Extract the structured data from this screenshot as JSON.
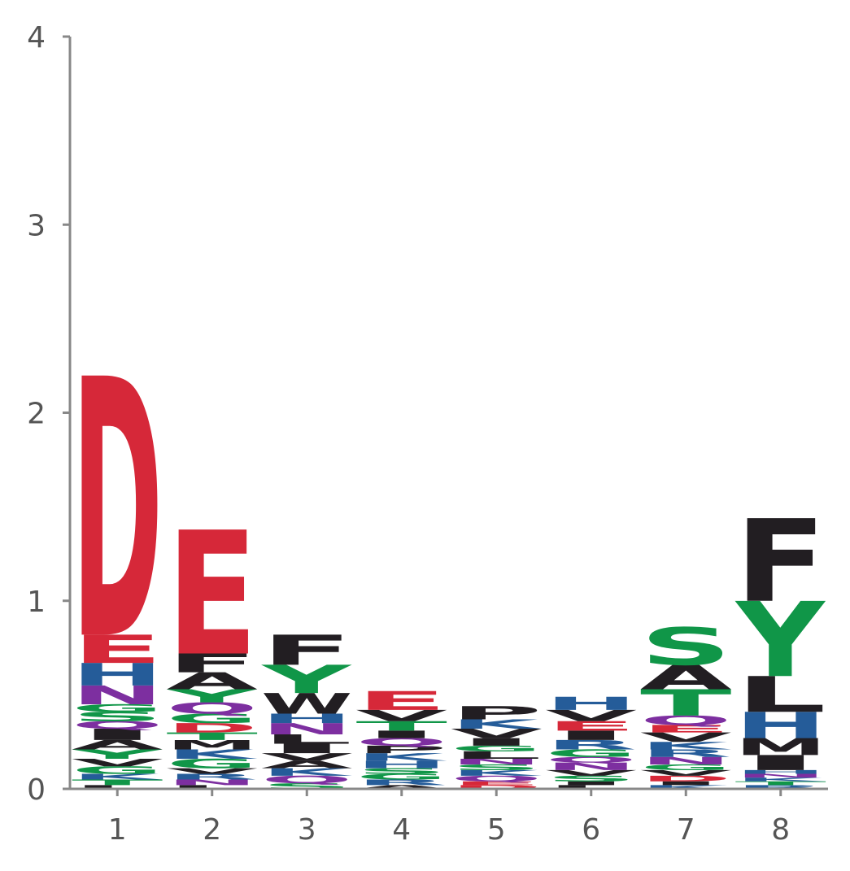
{
  "chart_data": {
    "type": "sequence_logo",
    "ylim": [
      0,
      4
    ],
    "y_ticks": [
      "0",
      "1",
      "2",
      "3",
      "4"
    ],
    "x_ticks": [
      "1",
      "2",
      "3",
      "4",
      "5",
      "6",
      "7",
      "8"
    ],
    "colors": {
      "acidic": "#d62839",
      "polar": "#109648",
      "basic": "#255c99",
      "neutral": "#7d2fa0",
      "hydrophobic": "#221e22"
    },
    "residue_class": {
      "D": "acidic",
      "E": "acidic",
      "S": "polar",
      "T": "polar",
      "G": "polar",
      "Y": "polar",
      "C": "polar",
      "H": "basic",
      "K": "basic",
      "R": "basic",
      "N": "neutral",
      "Q": "neutral",
      "A": "hydrophobic",
      "F": "hydrophobic",
      "W": "hydrophobic",
      "L": "hydrophobic",
      "V": "hydrophobic",
      "I": "hydrophobic",
      "M": "hydrophobic",
      "P": "hydrophobic"
    },
    "positions": [
      {
        "position": "1",
        "stack": [
          {
            "letter": "L",
            "bits": 0.02
          },
          {
            "letter": "T",
            "bits": 0.03
          },
          {
            "letter": "K",
            "bits": 0.03
          },
          {
            "letter": "G",
            "bits": 0.04
          },
          {
            "letter": "V",
            "bits": 0.04
          },
          {
            "letter": "Y",
            "bits": 0.05
          },
          {
            "letter": "A",
            "bits": 0.05
          },
          {
            "letter": "I",
            "bits": 0.06
          },
          {
            "letter": "Q",
            "bits": 0.04
          },
          {
            "letter": "S",
            "bits": 0.05
          },
          {
            "letter": "G",
            "bits": 0.04
          },
          {
            "letter": "N",
            "bits": 0.1
          },
          {
            "letter": "H",
            "bits": 0.12
          },
          {
            "letter": "E",
            "bits": 0.15
          },
          {
            "letter": "D",
            "bits": 1.38
          }
        ]
      },
      {
        "position": "2",
        "stack": [
          {
            "letter": "L",
            "bits": 0.02
          },
          {
            "letter": "N",
            "bits": 0.03
          },
          {
            "letter": "R",
            "bits": 0.03
          },
          {
            "letter": "V",
            "bits": 0.03
          },
          {
            "letter": "G",
            "bits": 0.05
          },
          {
            "letter": "K",
            "bits": 0.05
          },
          {
            "letter": "M",
            "bits": 0.05
          },
          {
            "letter": "T",
            "bits": 0.04
          },
          {
            "letter": "D",
            "bits": 0.05
          },
          {
            "letter": "G",
            "bits": 0.05
          },
          {
            "letter": "Q",
            "bits": 0.06
          },
          {
            "letter": "Y",
            "bits": 0.07
          },
          {
            "letter": "A",
            "bits": 0.09
          },
          {
            "letter": "F",
            "bits": 0.1
          },
          {
            "letter": "E",
            "bits": 0.66
          }
        ]
      },
      {
        "position": "3",
        "stack": [
          {
            "letter": "S",
            "bits": 0.03
          },
          {
            "letter": "Q",
            "bits": 0.04
          },
          {
            "letter": "K",
            "bits": 0.04
          },
          {
            "letter": "A",
            "bits": 0.04
          },
          {
            "letter": "V",
            "bits": 0.04
          },
          {
            "letter": "I",
            "bits": 0.05
          },
          {
            "letter": "L",
            "bits": 0.05
          },
          {
            "letter": "N",
            "bits": 0.06
          },
          {
            "letter": "H",
            "bits": 0.05
          },
          {
            "letter": "W",
            "bits": 0.11
          },
          {
            "letter": "Y",
            "bits": 0.15
          },
          {
            "letter": "F",
            "bits": 0.16
          }
        ]
      },
      {
        "position": "4",
        "stack": [
          {
            "letter": "A",
            "bits": 0.02
          },
          {
            "letter": "R",
            "bits": 0.03
          },
          {
            "letter": "G",
            "bits": 0.03
          },
          {
            "letter": "S",
            "bits": 0.03
          },
          {
            "letter": "H",
            "bits": 0.04
          },
          {
            "letter": "K",
            "bits": 0.04
          },
          {
            "letter": "P",
            "bits": 0.04
          },
          {
            "letter": "Q",
            "bits": 0.04
          },
          {
            "letter": "I",
            "bits": 0.04
          },
          {
            "letter": "T",
            "bits": 0.05
          },
          {
            "letter": "V",
            "bits": 0.06
          },
          {
            "letter": "E",
            "bits": 0.1
          }
        ]
      },
      {
        "position": "5",
        "stack": [
          {
            "letter": "D",
            "bits": 0.02
          },
          {
            "letter": "E",
            "bits": 0.02
          },
          {
            "letter": "Q",
            "bits": 0.03
          },
          {
            "letter": "K",
            "bits": 0.03
          },
          {
            "letter": "S",
            "bits": 0.03
          },
          {
            "letter": "N",
            "bits": 0.03
          },
          {
            "letter": "L",
            "bits": 0.04
          },
          {
            "letter": "G",
            "bits": 0.03
          },
          {
            "letter": "I",
            "bits": 0.04
          },
          {
            "letter": "V",
            "bits": 0.05
          },
          {
            "letter": "K",
            "bits": 0.05
          },
          {
            "letter": "P",
            "bits": 0.07
          }
        ]
      },
      {
        "position": "6",
        "stack": [
          {
            "letter": "L",
            "bits": 0.02
          },
          {
            "letter": "I",
            "bits": 0.02
          },
          {
            "letter": "S",
            "bits": 0.03
          },
          {
            "letter": "V",
            "bits": 0.03
          },
          {
            "letter": "N",
            "bits": 0.04
          },
          {
            "letter": "Q",
            "bits": 0.03
          },
          {
            "letter": "G",
            "bits": 0.04
          },
          {
            "letter": "R",
            "bits": 0.05
          },
          {
            "letter": "I",
            "bits": 0.05
          },
          {
            "letter": "E",
            "bits": 0.05
          },
          {
            "letter": "V",
            "bits": 0.06
          },
          {
            "letter": "H",
            "bits": 0.07
          }
        ]
      },
      {
        "position": "7",
        "stack": [
          {
            "letter": "K",
            "bits": 0.02
          },
          {
            "letter": "I",
            "bits": 0.02
          },
          {
            "letter": "D",
            "bits": 0.03
          },
          {
            "letter": "V",
            "bits": 0.03
          },
          {
            "letter": "G",
            "bits": 0.03
          },
          {
            "letter": "N",
            "bits": 0.04
          },
          {
            "letter": "R",
            "bits": 0.04
          },
          {
            "letter": "K",
            "bits": 0.04
          },
          {
            "letter": "V",
            "bits": 0.05
          },
          {
            "letter": "E",
            "bits": 0.04
          },
          {
            "letter": "Q",
            "bits": 0.05
          },
          {
            "letter": "T",
            "bits": 0.14
          },
          {
            "letter": "A",
            "bits": 0.13
          },
          {
            "letter": "S",
            "bits": 0.2
          }
        ]
      },
      {
        "position": "8",
        "stack": [
          {
            "letter": "R",
            "bits": 0.02
          },
          {
            "letter": "T",
            "bits": 0.02
          },
          {
            "letter": "K",
            "bits": 0.02
          },
          {
            "letter": "N",
            "bits": 0.02
          },
          {
            "letter": "H",
            "bits": 0.02
          },
          {
            "letter": "I",
            "bits": 0.08
          },
          {
            "letter": "M",
            "bits": 0.09
          },
          {
            "letter": "H",
            "bits": 0.14
          },
          {
            "letter": "L",
            "bits": 0.19
          },
          {
            "letter": "Y",
            "bits": 0.4
          },
          {
            "letter": "F",
            "bits": 0.44
          }
        ]
      }
    ]
  }
}
